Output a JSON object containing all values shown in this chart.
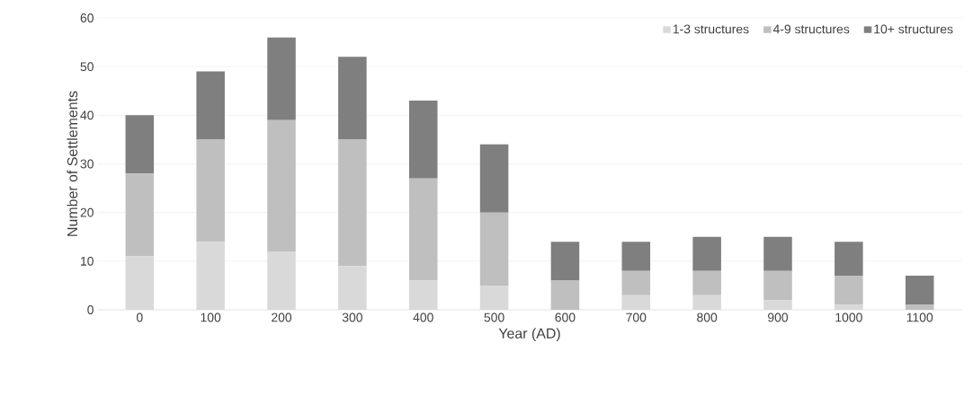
{
  "chart_data": {
    "type": "bar",
    "stacked": true,
    "xlabel": "Year (AD)",
    "ylabel": "Number of Settlements",
    "categories": [
      "0",
      "100",
      "200",
      "300",
      "400",
      "500",
      "600",
      "700",
      "800",
      "900",
      "1000",
      "1100"
    ],
    "series": [
      {
        "name": "1-3 structures",
        "color": "#d9d9d9",
        "values": [
          11,
          14,
          12,
          9,
          6,
          5,
          0,
          3,
          3,
          2,
          1,
          0
        ]
      },
      {
        "name": "4-9 structures",
        "color": "#bfbfbf",
        "values": [
          17,
          21,
          27,
          26,
          21,
          15,
          6,
          5,
          5,
          6,
          6,
          1
        ]
      },
      {
        "name": "10+ structures",
        "color": "#7f7f7f",
        "values": [
          12,
          14,
          17,
          17,
          16,
          14,
          8,
          6,
          7,
          7,
          7,
          6
        ]
      }
    ],
    "ylim": [
      0,
      60
    ],
    "yticks": [
      0,
      10,
      20,
      30,
      40,
      50,
      60
    ],
    "grid": "y",
    "legend": "top right"
  }
}
